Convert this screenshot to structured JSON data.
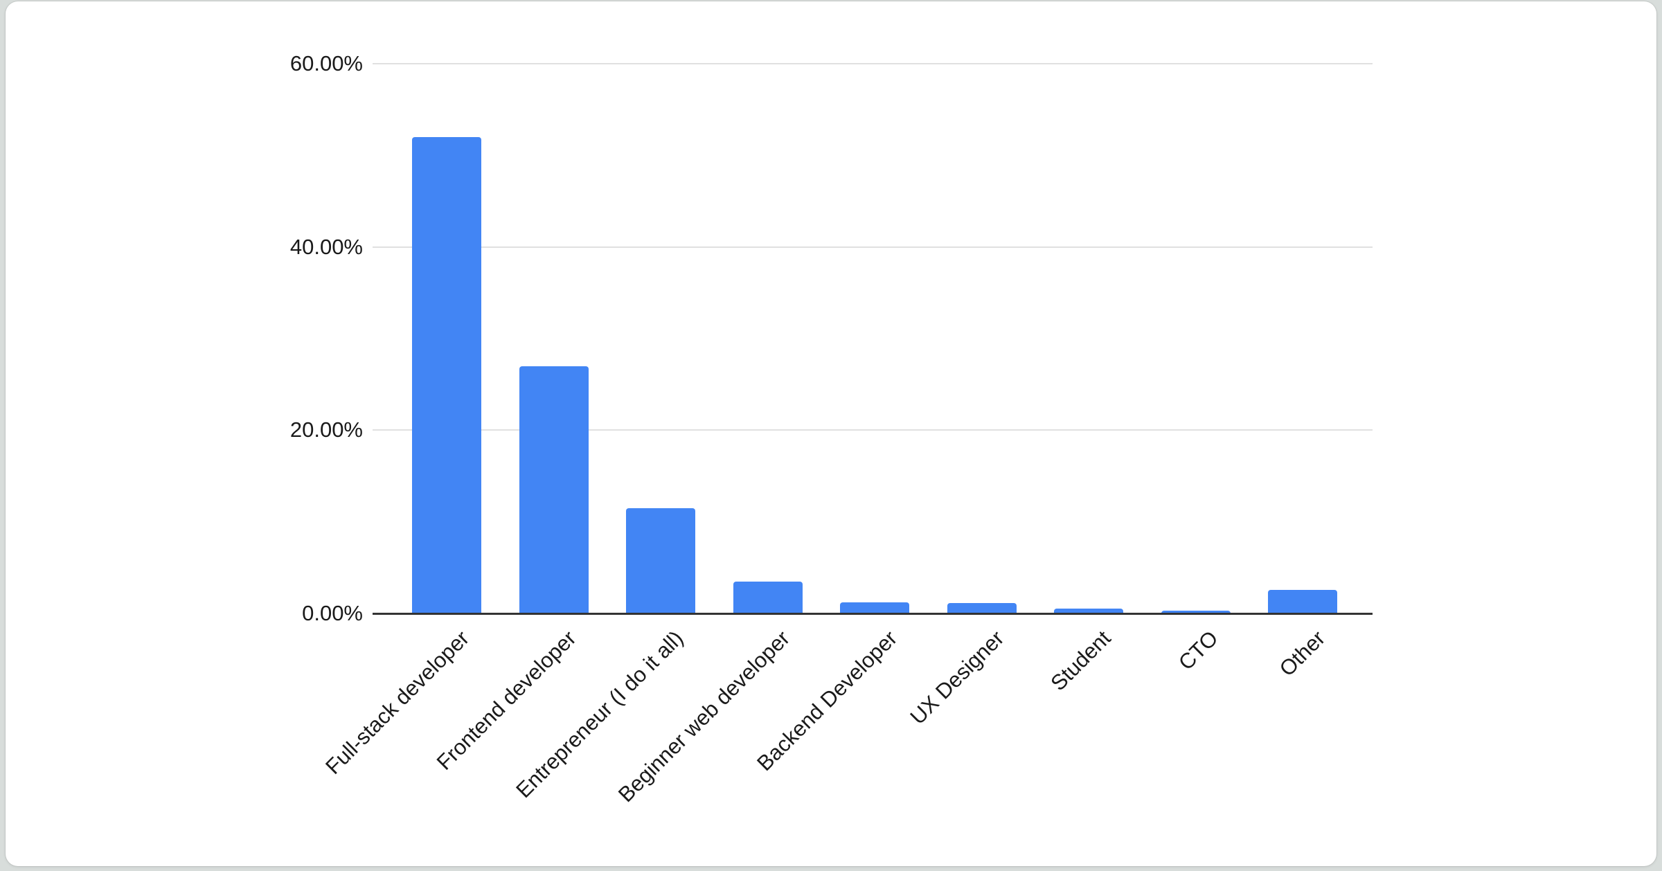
{
  "page": {
    "background_color": "#d8dddb",
    "card_background_color": "#ffffff"
  },
  "chart_data": {
    "type": "bar",
    "title": "",
    "xlabel": "",
    "ylabel": "",
    "categories": [
      "Full-stack developer",
      "Frontend developer",
      "Entrepreneur (I do it all)",
      "Beginner web developer",
      "Backend Developer",
      "UX Designer",
      "Student",
      "CTO",
      "Other"
    ],
    "values": [
      52.0,
      27.0,
      11.5,
      3.5,
      1.2,
      1.1,
      0.5,
      0.3,
      2.6
    ],
    "value_suffix": "%",
    "ylim": [
      0,
      60
    ],
    "yticks": [
      {
        "value": 0,
        "label": "0.00%"
      },
      {
        "value": 20,
        "label": "20.00%"
      },
      {
        "value": 40,
        "label": "40.00%"
      },
      {
        "value": 60,
        "label": "60.00%"
      }
    ],
    "grid": "horizontal",
    "legend_position": "none",
    "x_label_rotation_degrees": -45,
    "bar_color": "#4285f4",
    "axis_line_color": "#333333",
    "gridline_color": "#e0e0e0",
    "tick_label_color": "#1a1a1a"
  }
}
